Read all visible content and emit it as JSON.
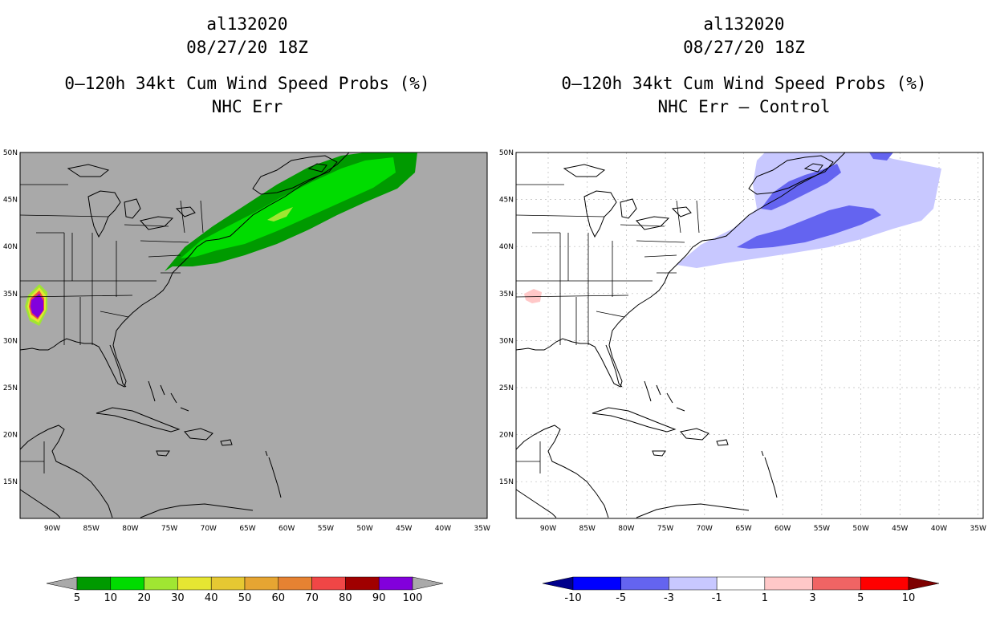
{
  "left_panel": {
    "storm_id": "al132020",
    "datetime": "08/27/20 18Z",
    "product": "0–120h 34kt Cum Wind Speed Probs (%)",
    "subtitle": "NHC Err",
    "background_color": "#a9a9a9"
  },
  "right_panel": {
    "storm_id": "al132020",
    "datetime": "08/27/20 18Z",
    "product": "0–120h 34kt Cum Wind Speed Probs (%)",
    "subtitle": "NHC Err – Control",
    "background_color": "#ffffff"
  },
  "map_axes": {
    "lat_labels": [
      "50N",
      "45N",
      "40N",
      "35N",
      "30N",
      "25N",
      "20N",
      "15N"
    ],
    "lon_labels": [
      "90W",
      "85W",
      "80W",
      "75W",
      "70W",
      "65W",
      "60W",
      "55W",
      "50W",
      "45W",
      "40W",
      "35W"
    ]
  },
  "left_colorbar": {
    "colors": [
      "#009a00",
      "#00dc00",
      "#a0e632",
      "#e6e632",
      "#e6c832",
      "#e6a532",
      "#e68232",
      "#f04646",
      "#a00000",
      "#8200dc"
    ],
    "labels": [
      "5",
      "10",
      "20",
      "30",
      "40",
      "50",
      "60",
      "70",
      "80",
      "90",
      "100"
    ],
    "under_color": "#a9a9a9",
    "over_color": "#a9a9a9"
  },
  "right_colorbar": {
    "colors": [
      "#0000ff",
      "#6464f0",
      "#c8c8ff",
      "#ffffff",
      "#ffc8c8",
      "#f06464",
      "#ff0000"
    ],
    "labels": [
      "-10",
      "-5",
      "-3",
      "-1",
      "1",
      "3",
      "5",
      "10"
    ],
    "under_color": "#00008b",
    "over_color": "#7d0000"
  }
}
